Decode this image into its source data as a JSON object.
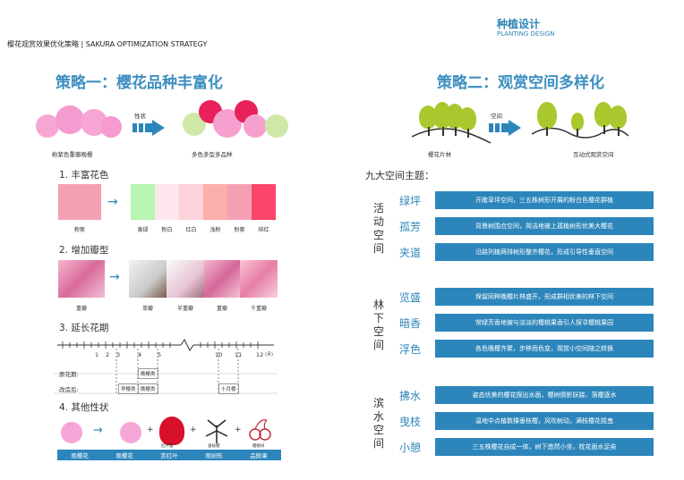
{
  "header": {
    "title": "种植设计",
    "subtitle": "PLANTING DESIGN"
  },
  "top_label": "樱花观赏效果优化策略 | SAKURA OPTIMIZATION STRATEGY",
  "left": {
    "title": "策略一：樱花品种丰富化",
    "arrow_label": "性状",
    "from_label": "粉紫色重瓣晚樱",
    "to_label": "多色多型多品种",
    "s1": {
      "heading": "1. 丰富花色",
      "base": {
        "label": "粉紫",
        "color": "#f59fb5"
      },
      "swatches": [
        {
          "label": "黄绿",
          "color": "#b7f5b0"
        },
        {
          "label": "粉白",
          "color": "#fde6ec"
        },
        {
          "label": "红白",
          "color": "#fdd3d9"
        },
        {
          "label": "浅粉",
          "color": "#fcafab"
        },
        {
          "label": "粉紫",
          "color": "#f59fb5"
        },
        {
          "label": "绯红",
          "color": "#fb456a"
        }
      ]
    },
    "s2": {
      "heading": "2. 增加瓣型",
      "base_label": "重瓣",
      "labels": [
        "单瓣",
        "半重瓣",
        "重瓣",
        "千重瓣"
      ]
    },
    "s3": {
      "heading": "3. 延长花期",
      "ticks": [
        "1",
        "2",
        "3",
        "4",
        "5",
        "10",
        "11",
        "12"
      ],
      "unit": "(月)",
      "row1": "原花期:",
      "row2": "改造后:",
      "badge_orig": "晚樱类",
      "badges_new": [
        "早樱类",
        "晚樱类",
        "十月樱"
      ]
    },
    "s4": {
      "heading": "4. 其他性状",
      "small_labels": [
        "红叶樱",
        "垂枝樱",
        "樱桃树"
      ],
      "footer": [
        "观樱花",
        "观樱花",
        "赏红叶",
        "观树形",
        "品鲜果"
      ]
    }
  },
  "right": {
    "title": "策略二：观赏空间多样化",
    "arrow_label": "空间",
    "from_label": "樱花片林",
    "to_label": "互动式观赏空间",
    "themes_heading": "九大空间主题：",
    "groups": [
      {
        "category": "活动空间",
        "items": [
          {
            "name": "绿坪",
            "desc": "开敞草坪空间，三五株树形开展的粉白色樱花群植"
          },
          {
            "name": "孤芳",
            "desc": "背景树围合空间，简洁地被上孤植树形优美大樱花"
          },
          {
            "name": "夹道",
            "desc": "沿路列植两排树形整齐樱花，形成引导性垂直空间"
          }
        ]
      },
      {
        "category": "林下空间",
        "items": [
          {
            "name": "览盛",
            "desc": "保留同种晚樱片林盛开，形成群相优美的林下空间"
          },
          {
            "name": "暗香",
            "desc": "常绿芳香地被与淡淡的樱桃果香引人探寻樱桃果园"
          },
          {
            "name": "浮色",
            "desc": "各色晚樱齐聚，步移而色变，观赏小空间随之转换"
          }
        ]
      },
      {
        "category": "滨水空间",
        "items": [
          {
            "name": "拂水",
            "desc": "姿态优美的樱花探出水面，樱树倒影妖娆、落樱逐水"
          },
          {
            "name": "曳枝",
            "desc": "温地中点植数棵垂枝樱，风吹树动，满枝樱花摇曳"
          },
          {
            "name": "小憩",
            "desc": "三五株樱花自成一体，树下悠然小坐，枕花面水足矣"
          }
        ]
      }
    ]
  }
}
